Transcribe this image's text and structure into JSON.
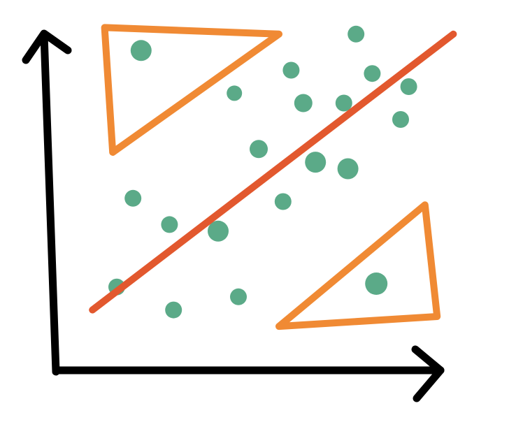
{
  "colors": {
    "axis": "#000000",
    "region_outline": "#F08A34",
    "trend_line": "#E2582E",
    "points": "#5BAA88",
    "background": "#FFFFFF"
  },
  "chart_data": {
    "type": "scatter",
    "title": "",
    "xlabel": "",
    "ylabel": "",
    "xlim": [
      0,
      100
    ],
    "ylim": [
      0,
      100
    ],
    "grid": false,
    "series": [
      {
        "marker": "dot",
        "points": [
          [
            21,
            91
          ],
          [
            58,
            85
          ],
          [
            78,
            84
          ],
          [
            87,
            80
          ],
          [
            74,
            96
          ],
          [
            44,
            78
          ],
          [
            61,
            75
          ],
          [
            71,
            75
          ],
          [
            85,
            70
          ],
          [
            50,
            61
          ],
          [
            64,
            57
          ],
          [
            72,
            55
          ],
          [
            19,
            46
          ],
          [
            56,
            45
          ],
          [
            28,
            38
          ],
          [
            40,
            36
          ],
          [
            15,
            19
          ],
          [
            45,
            16
          ],
          [
            29,
            12
          ],
          [
            79,
            20
          ]
        ]
      }
    ],
    "trend_line": {
      "from": [
        9,
        12
      ],
      "to": [
        98,
        96
      ]
    },
    "regions": [
      {
        "shape": "triangle",
        "vertices": [
          [
            12,
            98
          ],
          [
            55,
            96
          ],
          [
            14,
            60
          ]
        ]
      },
      {
        "shape": "triangle",
        "vertices": [
          [
            91,
            44
          ],
          [
            94,
            10
          ],
          [
            55,
            7
          ]
        ]
      }
    ]
  }
}
